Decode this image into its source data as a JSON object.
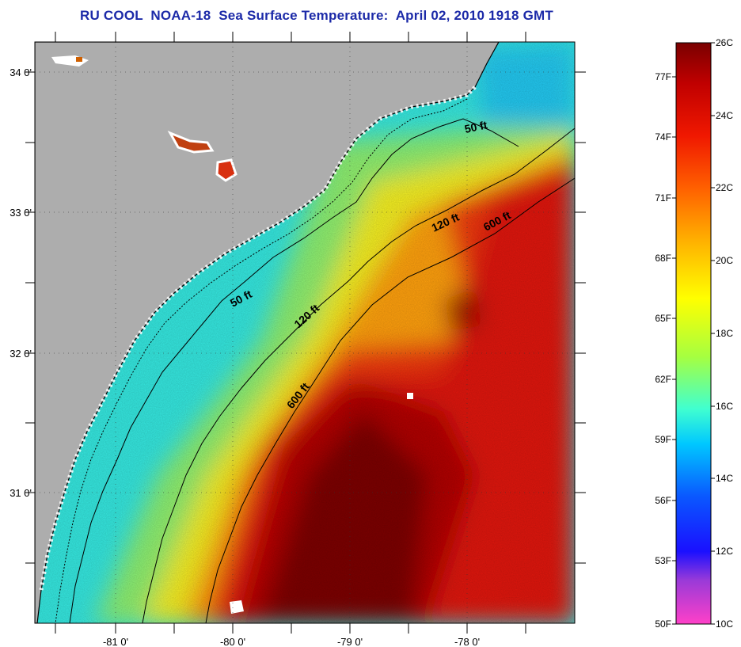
{
  "title": "RU COOL  NOAA-18  Sea Surface Temperature:  April 02, 2010 1918 GMT",
  "map": {
    "lat_labels": [
      "34 0'",
      "33 0'",
      "32 0'",
      "31 0'"
    ],
    "lon_labels": [
      "-81 0'",
      "-80 0'",
      "-79 0'",
      "-78 0'"
    ],
    "contour_labels": [
      "50 ft",
      "50 ft",
      "120 ft",
      "120 ft",
      "600 ft",
      "600 ft"
    ],
    "colors": {
      "land": "#adadad",
      "coastline": "#000000",
      "grid": "#333333"
    }
  },
  "colorbar": {
    "celsius_labels": [
      "26C",
      "24C",
      "22C",
      "20C",
      "18C",
      "16C",
      "14C",
      "12C",
      "10C"
    ],
    "fahrenheit_labels": [
      "77F",
      "74F",
      "71F",
      "68F",
      "65F",
      "62F",
      "59F",
      "56F",
      "53F",
      "50F"
    ],
    "stops": [
      "#ff40c8",
      "#9a3ad8",
      "#1a10ff",
      "#0a58ff",
      "#00c8ff",
      "#40ffd0",
      "#a6ff40",
      "#ffff00",
      "#ffb000",
      "#ff6000",
      "#f01800",
      "#c00000",
      "#7a0000"
    ]
  }
}
